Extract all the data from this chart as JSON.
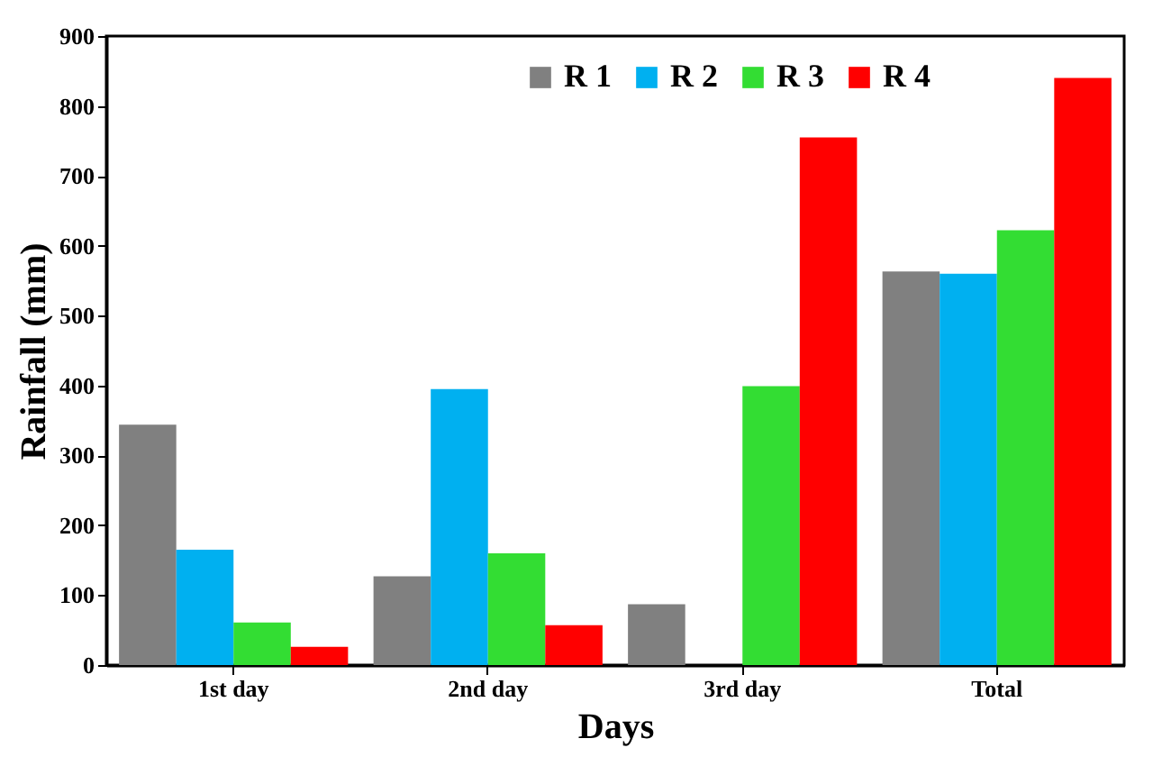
{
  "chart_data": {
    "type": "bar",
    "xlabel": "Days",
    "ylabel": "Rainfall (mm)",
    "categories": [
      "1st day",
      "2nd day",
      "3rd day",
      "Total"
    ],
    "series": [
      {
        "name": "R 1",
        "color": "#808080",
        "values": [
          344,
          127,
          87,
          563
        ]
      },
      {
        "name": "R 2",
        "color": "#00b0f0",
        "values": [
          165,
          395,
          0,
          560
        ]
      },
      {
        "name": "R 3",
        "color": "#33dd33",
        "values": [
          61,
          160,
          399,
          622
        ]
      },
      {
        "name": "R 4",
        "color": "#ff0000",
        "values": [
          26,
          57,
          755,
          840
        ]
      }
    ],
    "ylim": [
      0,
      900
    ],
    "yticks": [
      0,
      100,
      200,
      300,
      400,
      500,
      600,
      700,
      800,
      900
    ],
    "grid": false,
    "legend": "top right"
  }
}
